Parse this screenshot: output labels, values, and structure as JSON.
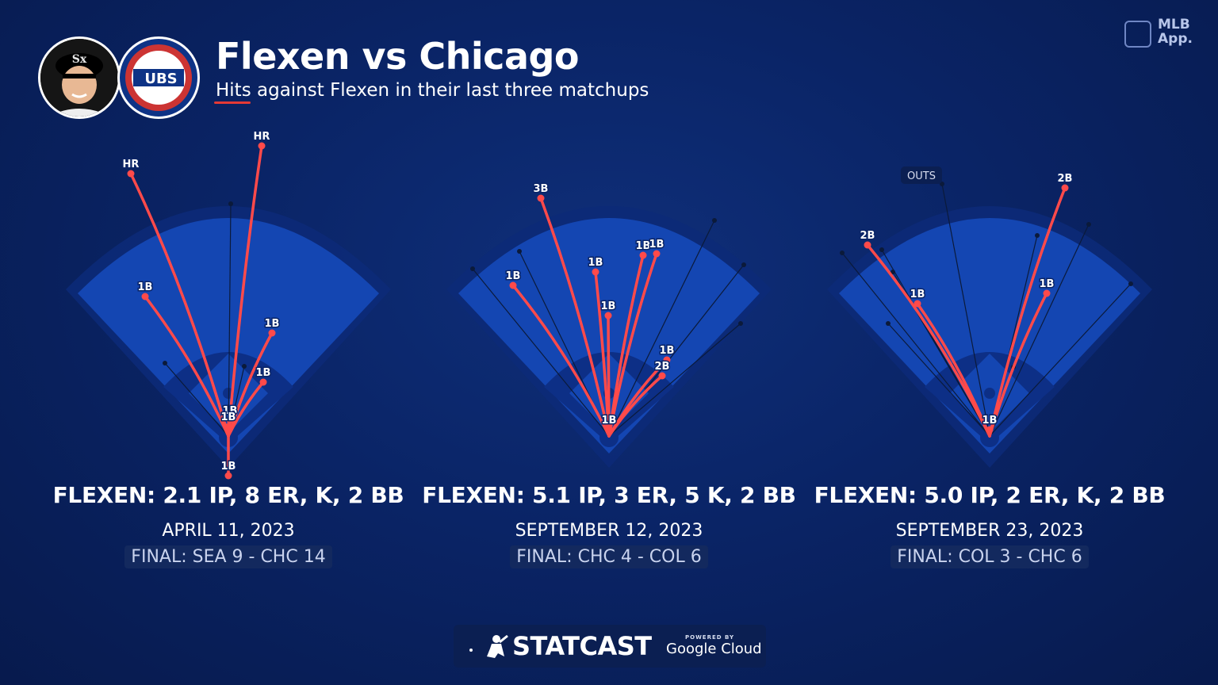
{
  "header": {
    "title": "Flexen vs Chicago",
    "subtitle": "Hits against Flexen in their last three matchups"
  },
  "logos": {
    "cubs_text": "UBS",
    "mlb_line1": "MLB",
    "mlb_line2": "App."
  },
  "colors": {
    "background": "#0a2466",
    "field_outer": "#0d2f86",
    "field_inner": "#1446b2",
    "hit_line": "#ff4a4a",
    "out_line": "#0b1a3a"
  },
  "footer": {
    "brand": "STATCAST",
    "powered_by": "POWERED BY",
    "partner": "Google Cloud"
  },
  "chart_data": [
    {
      "type": "scatter",
      "statline": "FLEXEN: 2.1 IP, 8 ER, K, 2 BB",
      "date": "APRIL 11, 2023",
      "final": "FINAL: SEA 9 - CHC 14",
      "hits": [
        {
          "label": "HR",
          "x": -123,
          "y": 331
        },
        {
          "label": "HR",
          "x": 42,
          "y": 366
        },
        {
          "label": "1B",
          "x": -105,
          "y": 176
        },
        {
          "label": "1B",
          "x": 55,
          "y": 130
        },
        {
          "label": "1B",
          "x": 44,
          "y": 68
        },
        {
          "label": "1B",
          "x": 2,
          "y": 20
        },
        {
          "label": "1B",
          "x": 0,
          "y": 12
        },
        {
          "label": "1B",
          "x": 0,
          "y": -50
        }
      ],
      "outs": [
        {
          "x": 3,
          "y": 293
        },
        {
          "x": -80,
          "y": 92
        },
        {
          "x": 20,
          "y": 88
        }
      ]
    },
    {
      "type": "scatter",
      "statline": "FLEXEN: 5.1 IP, 3 ER, 5 K, 2 BB",
      "date": "SEPTEMBER 12, 2023",
      "final": "FINAL: CHC 4 - COL 6",
      "hits": [
        {
          "label": "3B",
          "x": -86,
          "y": 300
        },
        {
          "label": "1B",
          "x": -121,
          "y": 190
        },
        {
          "label": "1B",
          "x": -17,
          "y": 207
        },
        {
          "label": "1B",
          "x": -1,
          "y": 152
        },
        {
          "label": "1B",
          "x": 43,
          "y": 228
        },
        {
          "label": "1B",
          "x": 60,
          "y": 230
        },
        {
          "label": "1B",
          "x": 73,
          "y": 96
        },
        {
          "label": "2B",
          "x": 67,
          "y": 76
        },
        {
          "label": "1B",
          "x": 0,
          "y": 8
        }
      ],
      "outs": [
        {
          "x": -113,
          "y": 233
        },
        {
          "x": -172,
          "y": 211
        },
        {
          "x": 133,
          "y": 272
        },
        {
          "x": 170,
          "y": 216
        },
        {
          "x": 166,
          "y": 142
        }
      ]
    },
    {
      "type": "scatter",
      "statline": "FLEXEN: 5.0 IP, 2 ER, K, 2 BB",
      "date": "SEPTEMBER 23, 2023",
      "final": "FINAL: COL 3 - CHC 6",
      "annotation": "OUTS",
      "hits": [
        {
          "label": "2B",
          "x": -154,
          "y": 241
        },
        {
          "label": "1B",
          "x": -91,
          "y": 167
        },
        {
          "label": "2B",
          "x": 95,
          "y": 313
        },
        {
          "label": "1B",
          "x": 72,
          "y": 180
        },
        {
          "label": "1B",
          "x": 0,
          "y": 8
        }
      ],
      "outs": [
        {
          "x": -60,
          "y": 318
        },
        {
          "x": -136,
          "y": 235
        },
        {
          "x": -186,
          "y": 231
        },
        {
          "x": -122,
          "y": 207
        },
        {
          "x": -128,
          "y": 142
        },
        {
          "x": 60,
          "y": 253
        },
        {
          "x": 125,
          "y": 267
        },
        {
          "x": 178,
          "y": 192
        },
        {
          "x": 30,
          "y": 87
        }
      ]
    }
  ]
}
